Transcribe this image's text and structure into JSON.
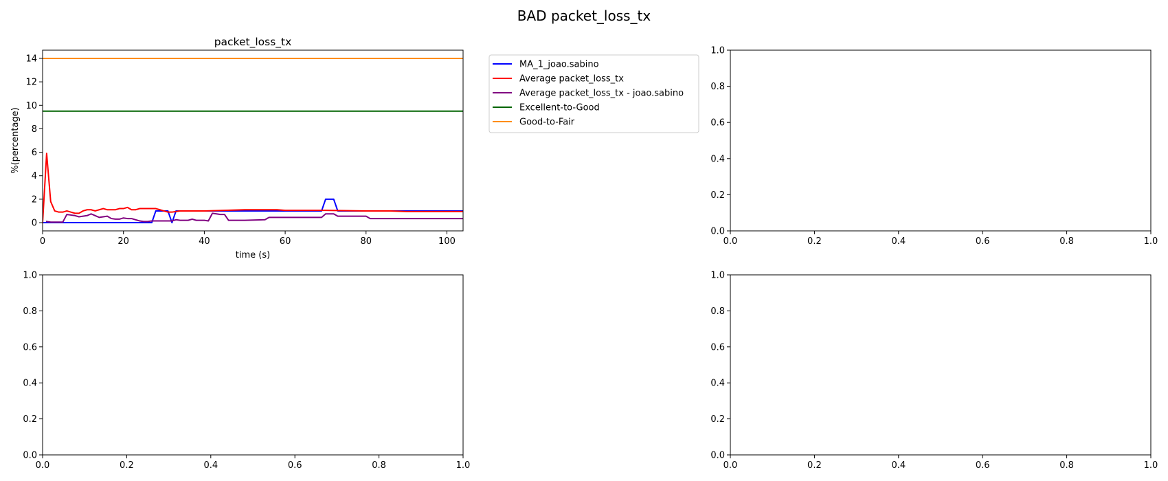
{
  "figure": {
    "suptitle": "BAD packet_loss_tx"
  },
  "chart_data": [
    {
      "type": "line",
      "title": "packet_loss_tx",
      "xlabel": "time (s)",
      "ylabel": "%(percentage)",
      "xlim": [
        0,
        104
      ],
      "ylim": [
        -0.7,
        14.7
      ],
      "xticks": [
        0,
        20,
        40,
        60,
        80,
        100
      ],
      "yticks": [
        0,
        2,
        4,
        6,
        8,
        10,
        12,
        14
      ],
      "grid": false,
      "legend_placement": "outside upper right",
      "series": [
        {
          "name": "MA_1_joao.sabino",
          "color": "#0000ff",
          "x": [
            0,
            27,
            28,
            31,
            32,
            33,
            69,
            70,
            72,
            73,
            104
          ],
          "y": [
            0,
            0,
            1,
            1,
            0,
            1,
            1,
            2,
            2,
            1,
            1
          ]
        },
        {
          "name": "Average packet_loss_tx",
          "color": "#ff0000",
          "x": [
            0,
            1,
            2,
            3,
            4,
            5,
            6,
            7,
            8,
            9,
            10,
            11,
            12,
            13,
            14,
            15,
            16,
            17,
            18,
            19,
            20,
            21,
            22,
            23,
            24,
            25,
            26,
            27,
            28,
            29,
            30,
            31,
            32,
            34,
            40,
            50,
            58,
            60,
            64,
            70,
            80,
            86,
            90,
            100,
            104
          ],
          "y": [
            0,
            5.9,
            1.8,
            1.0,
            0.9,
            0.9,
            1.0,
            0.9,
            0.8,
            0.8,
            1.0,
            1.1,
            1.1,
            1.0,
            1.1,
            1.2,
            1.1,
            1.1,
            1.1,
            1.2,
            1.2,
            1.3,
            1.1,
            1.1,
            1.2,
            1.2,
            1.2,
            1.2,
            1.2,
            1.1,
            1.0,
            0.9,
            0.9,
            1.0,
            1.0,
            1.1,
            1.1,
            1.05,
            1.05,
            1.05,
            1.0,
            1.0,
            0.95,
            0.95,
            0.95
          ]
        },
        {
          "name": "Average packet_loss_tx - joao.sabino",
          "color": "#800080",
          "x": [
            1,
            2,
            5,
            6,
            7,
            8,
            9,
            10,
            11,
            12,
            13,
            14,
            15,
            16,
            17,
            18,
            19,
            20,
            21,
            22,
            23,
            24,
            25,
            26,
            27,
            28,
            29,
            30,
            31,
            32,
            33,
            34,
            35,
            36,
            37,
            38,
            39,
            40,
            41,
            42,
            43,
            44,
            45,
            46,
            50,
            55,
            56,
            57,
            60,
            65,
            68,
            69,
            70,
            72,
            73,
            78,
            80,
            81,
            85,
            90,
            104
          ],
          "y": [
            0.1,
            0.05,
            0.05,
            0.7,
            0.65,
            0.6,
            0.5,
            0.55,
            0.6,
            0.75,
            0.6,
            0.45,
            0.5,
            0.55,
            0.35,
            0.3,
            0.3,
            0.4,
            0.35,
            0.35,
            0.25,
            0.15,
            0.1,
            0.1,
            0.15,
            0.15,
            0.15,
            0.15,
            0.15,
            0.15,
            0.25,
            0.2,
            0.2,
            0.2,
            0.3,
            0.2,
            0.2,
            0.2,
            0.15,
            0.8,
            0.75,
            0.7,
            0.7,
            0.2,
            0.2,
            0.25,
            0.45,
            0.45,
            0.45,
            0.45,
            0.45,
            0.45,
            0.75,
            0.75,
            0.55,
            0.55,
            0.55,
            0.35,
            0.35,
            0.35,
            0.35
          ]
        },
        {
          "name": "Excellent-to-Good",
          "color": "#006400",
          "x": [
            0,
            104
          ],
          "y": [
            9.5,
            9.5
          ]
        },
        {
          "name": "Good-to-Fair",
          "color": "#ff8c00",
          "x": [
            0,
            104
          ],
          "y": [
            14,
            14
          ]
        }
      ]
    },
    {
      "type": "line",
      "title": "",
      "xlabel": "",
      "ylabel": "",
      "xlim": [
        0,
        1
      ],
      "ylim": [
        0,
        1
      ],
      "xticks": [
        0.0,
        0.2,
        0.4,
        0.6,
        0.8,
        1.0
      ],
      "yticks": [
        0.0,
        0.2,
        0.4,
        0.6,
        0.8,
        1.0
      ],
      "grid": false,
      "series": []
    },
    {
      "type": "line",
      "title": "",
      "xlabel": "",
      "ylabel": "",
      "xlim": [
        0,
        1
      ],
      "ylim": [
        0,
        1
      ],
      "xticks": [
        0.0,
        0.2,
        0.4,
        0.6,
        0.8,
        1.0
      ],
      "yticks": [
        0.0,
        0.2,
        0.4,
        0.6,
        0.8,
        1.0
      ],
      "grid": false,
      "series": []
    },
    {
      "type": "line",
      "title": "",
      "xlabel": "",
      "ylabel": "",
      "xlim": [
        0,
        1
      ],
      "ylim": [
        0,
        1
      ],
      "xticks": [
        0.0,
        0.2,
        0.4,
        0.6,
        0.8,
        1.0
      ],
      "yticks": [
        0.0,
        0.2,
        0.4,
        0.6,
        0.8,
        1.0
      ],
      "grid": false,
      "series": []
    }
  ]
}
